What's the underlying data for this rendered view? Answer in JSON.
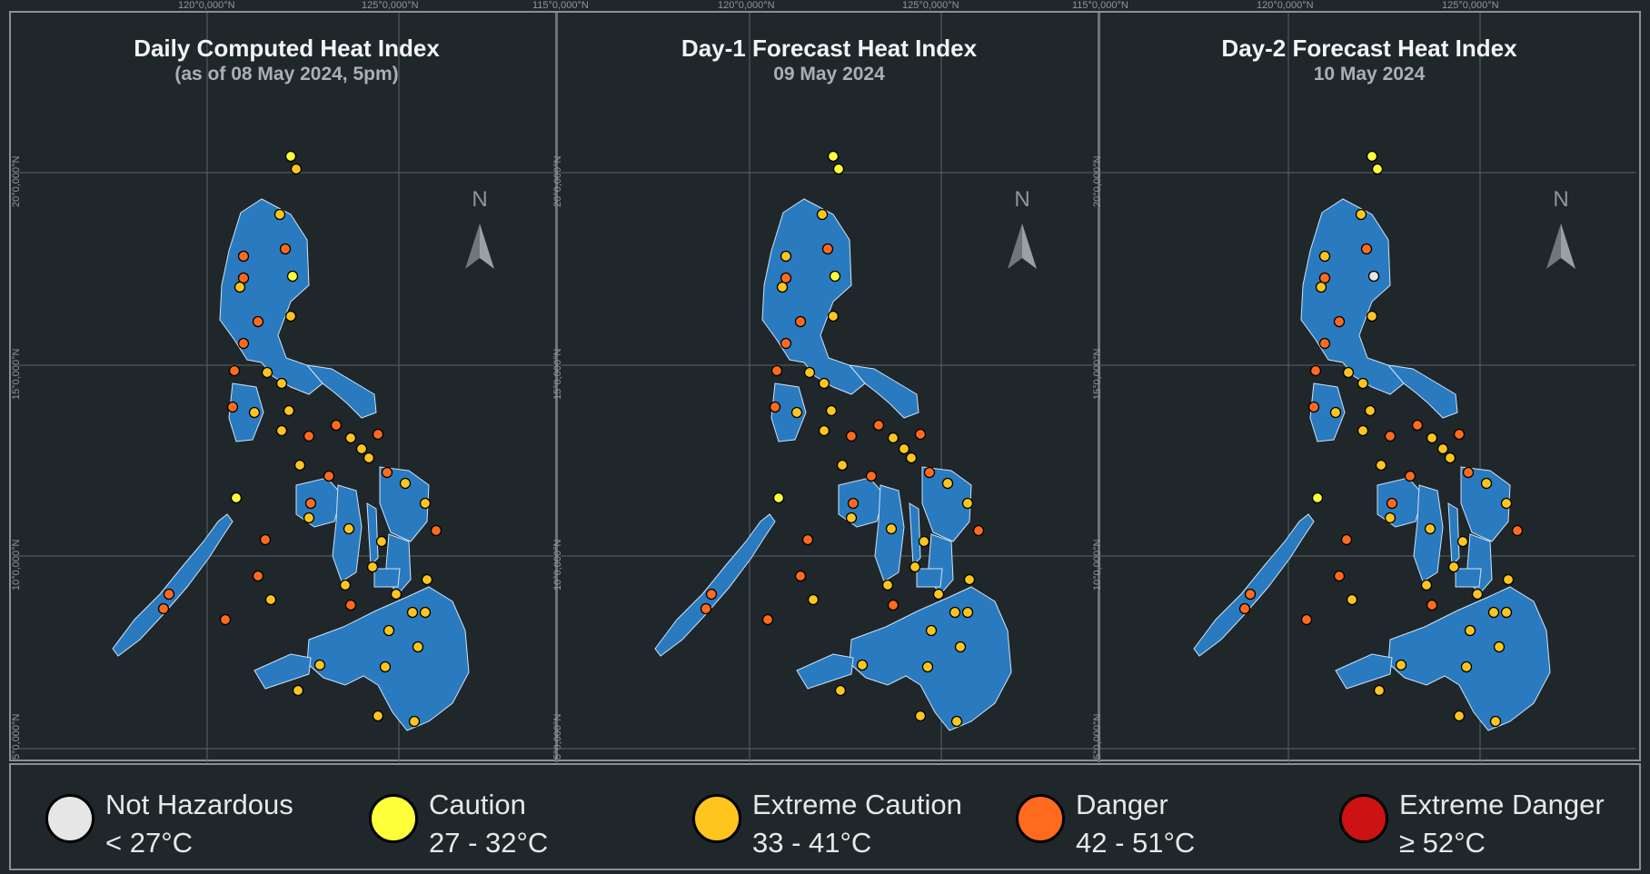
{
  "coords": {
    "lon": [
      "115°0,000°N",
      "120°0,000°N",
      "125°0,000°N"
    ],
    "lat": [
      "20°0,000°N",
      "15°0,000°N",
      "10°0,000°N",
      "5°0,000°N"
    ]
  },
  "north_label": "N",
  "panels": [
    {
      "title": "Daily Computed Heat Index",
      "subtitle": "(as of 08 May 2024, 5pm)"
    },
    {
      "title": "Day-1 Forecast Heat Index",
      "subtitle": "09 May 2024"
    },
    {
      "title": "Day-2 Forecast Heat Index",
      "subtitle": "10 May 2024"
    }
  ],
  "legend": [
    {
      "name": "Not Hazardous",
      "range": "< 27°C",
      "color": "#e6e6e6"
    },
    {
      "name": "Caution",
      "range": "27 - 32°C",
      "color": "#ffff3a"
    },
    {
      "name": "Extreme Caution",
      "range": "33 - 41°C",
      "color": "#ffc51f"
    },
    {
      "name": "Danger",
      "range": "42 - 51°C",
      "color": "#ff6a1f"
    },
    {
      "name": "Extreme Danger",
      "range": "≥ 52°C",
      "color": "#cc1212"
    }
  ],
  "colors": {
    "background": "#1f272b",
    "land": "#2a7ac0",
    "grid": "#59646a"
  },
  "stations": [
    {
      "day0": "caution",
      "day1": "caution",
      "day2": "caution"
    },
    {
      "day0": "extreme-caution",
      "day1": "caution",
      "day2": "caution"
    },
    {
      "day0": "extreme-caution",
      "day1": "extreme-caution",
      "day2": "extreme-caution"
    },
    {
      "day0": "danger",
      "day1": "danger",
      "day2": "danger"
    },
    {
      "day0": "danger",
      "day1": "extreme-caution",
      "day2": "extreme-caution"
    },
    {
      "day0": "caution",
      "day1": "caution",
      "day2": "not-hazardous"
    },
    {
      "day0": "danger",
      "day1": "danger",
      "day2": "danger"
    },
    {
      "day0": "extreme-caution",
      "day1": "extreme-caution",
      "day2": "extreme-caution"
    },
    {
      "day0": "danger",
      "day1": "danger",
      "day2": "danger"
    }
  ]
}
